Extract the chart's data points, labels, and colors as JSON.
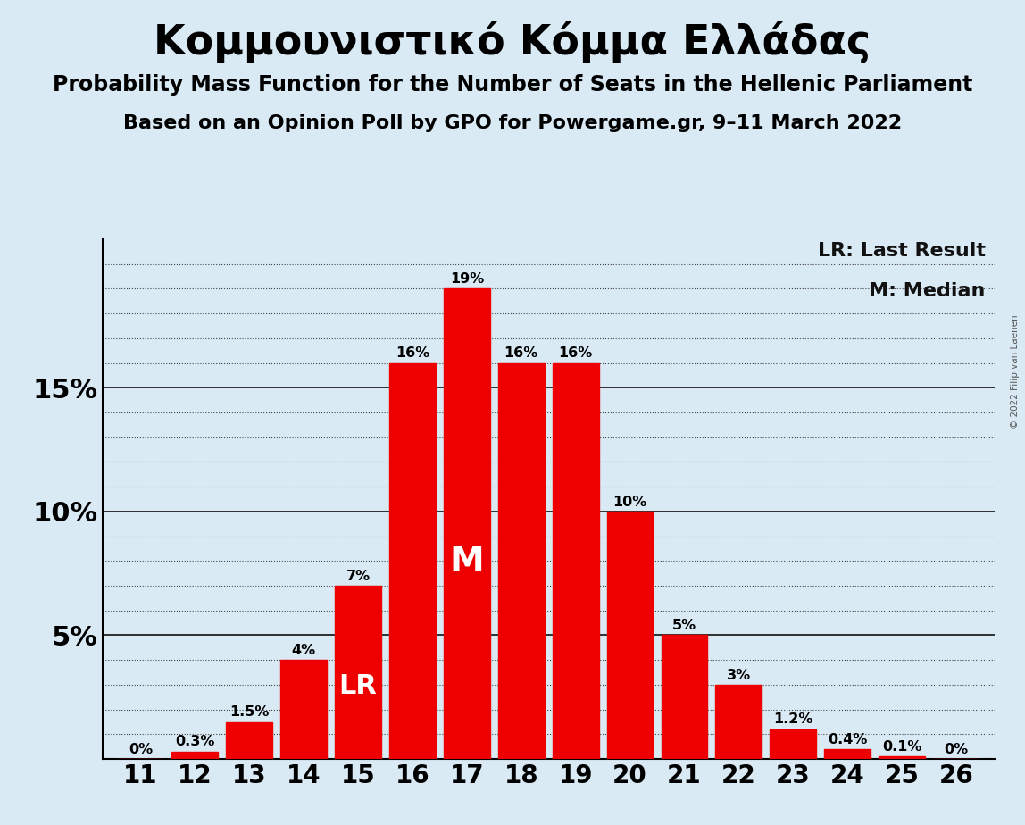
{
  "title": "Κομμουνιστικό Κόμμα Ελλάδας",
  "subtitle1": "Probability Mass Function for the Number of Seats in the Hellenic Parliament",
  "subtitle2": "Based on an Opinion Poll by GPO for Powergame.gr, 9–11 March 2022",
  "copyright": "© 2022 Filip van Laenen",
  "seats": [
    11,
    12,
    13,
    14,
    15,
    16,
    17,
    18,
    19,
    20,
    21,
    22,
    23,
    24,
    25,
    26
  ],
  "values": [
    0.0,
    0.3,
    1.5,
    4.0,
    7.0,
    16.0,
    19.0,
    16.0,
    16.0,
    10.0,
    5.0,
    3.0,
    1.2,
    0.4,
    0.1,
    0.0
  ],
  "bar_color": "#ee0000",
  "background_color": "#daeaf5",
  "lr_seat": 15,
  "median_seat": 17,
  "legend_lr": "LR: Last Result",
  "legend_m": "M: Median",
  "ytick_labels": [
    "5%",
    "10%",
    "15%"
  ],
  "ytick_values": [
    5,
    10,
    15
  ],
  "ylim": [
    0,
    21.0
  ],
  "grid_step": 1.0,
  "solid_grid_values": [
    5,
    10,
    15
  ]
}
